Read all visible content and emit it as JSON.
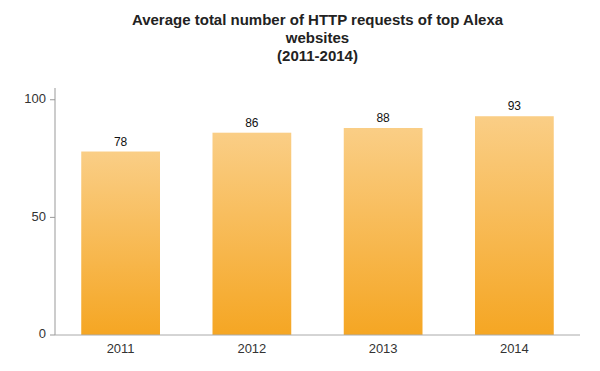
{
  "chart_data": {
    "type": "bar",
    "title": "Average total number of HTTP requests of top Alexa\nwebsites\n(2011-2014)",
    "categories": [
      "2011",
      "2012",
      "2013",
      "2014"
    ],
    "values": [
      78,
      86,
      88,
      93
    ],
    "color": "#F5A623",
    "ylim": [
      0,
      105
    ],
    "yticks": [
      0,
      50,
      100
    ],
    "grid": false,
    "data_labels": true
  }
}
